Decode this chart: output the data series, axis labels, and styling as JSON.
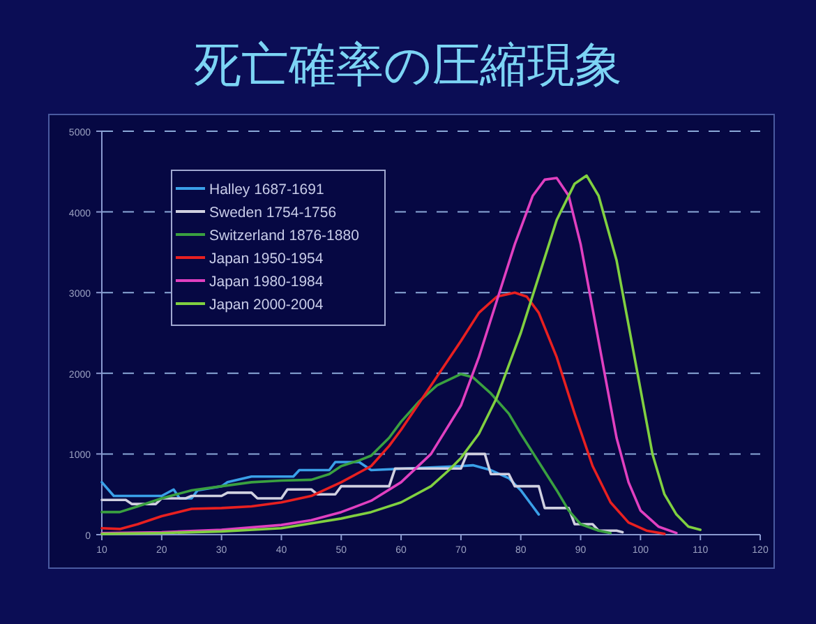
{
  "chart_data": {
    "type": "line",
    "title": "死亡確率の圧縮現象",
    "xlim": [
      10,
      120
    ],
    "ylim": [
      0,
      5000
    ],
    "xticks": [
      10,
      20,
      30,
      40,
      50,
      60,
      70,
      80,
      90,
      100,
      110,
      120
    ],
    "yticks": [
      0,
      1000,
      2000,
      3000,
      4000,
      5000
    ],
    "grid": "y",
    "legend": "top left",
    "line_style": "solid",
    "marker": "none",
    "series": [
      {
        "name": "Halley 1687-1691",
        "color": "#3aa0e8",
        "x": [
          10,
          12,
          20,
          22,
          23,
          25,
          26,
          30,
          31,
          35,
          42,
          43,
          48,
          49,
          53,
          55,
          70,
          72,
          75,
          78,
          80,
          82,
          83
        ],
        "values": [
          650,
          480,
          480,
          560,
          450,
          450,
          550,
          600,
          650,
          720,
          720,
          800,
          800,
          900,
          900,
          800,
          850,
          860,
          800,
          700,
          550,
          350,
          250
        ]
      },
      {
        "name": "Sweden 1754-1756",
        "color": "#d0d0e0",
        "x": [
          10,
          14,
          15,
          19,
          20,
          24,
          25,
          30,
          31,
          35,
          36,
          40,
          41,
          45,
          46,
          49,
          50,
          58,
          59,
          70,
          71,
          74,
          75,
          78,
          79,
          83,
          84,
          88,
          89,
          92,
          93,
          96,
          97
        ],
        "values": [
          430,
          430,
          380,
          380,
          450,
          450,
          480,
          480,
          520,
          520,
          450,
          450,
          560,
          560,
          500,
          500,
          600,
          600,
          820,
          820,
          1000,
          1000,
          750,
          750,
          600,
          600,
          330,
          330,
          130,
          130,
          50,
          50,
          30
        ]
      },
      {
        "name": "Switzerland 1876-1880",
        "color": "#3aa040",
        "x": [
          10,
          13,
          16,
          20,
          25,
          30,
          35,
          40,
          45,
          48,
          50,
          53,
          55,
          58,
          60,
          63,
          66,
          70,
          72,
          75,
          78,
          80,
          83,
          86,
          88,
          90,
          93,
          95
        ],
        "values": [
          280,
          280,
          350,
          450,
          550,
          600,
          650,
          670,
          680,
          750,
          850,
          920,
          980,
          1200,
          1400,
          1650,
          1850,
          1990,
          1950,
          1750,
          1500,
          1250,
          900,
          550,
          300,
          130,
          50,
          20
        ]
      },
      {
        "name": "Japan 1950-1954",
        "color": "#e82020",
        "x": [
          10,
          13,
          16,
          20,
          25,
          30,
          35,
          40,
          45,
          50,
          55,
          58,
          60,
          65,
          70,
          73,
          76,
          79,
          81,
          83,
          86,
          89,
          92,
          95,
          98,
          101,
          104
        ],
        "values": [
          80,
          70,
          130,
          230,
          320,
          330,
          350,
          400,
          480,
          650,
          850,
          1100,
          1300,
          1850,
          2400,
          2750,
          2950,
          3000,
          2950,
          2750,
          2200,
          1500,
          850,
          400,
          150,
          50,
          10
        ]
      },
      {
        "name": "Japan 1980-1984",
        "color": "#e040c0",
        "x": [
          10,
          20,
          30,
          40,
          45,
          50,
          55,
          60,
          65,
          70,
          73,
          76,
          79,
          82,
          84,
          86,
          88,
          90,
          92,
          94,
          96,
          98,
          100,
          103,
          106
        ],
        "values": [
          20,
          30,
          60,
          120,
          180,
          280,
          420,
          650,
          1000,
          1600,
          2200,
          2900,
          3600,
          4200,
          4400,
          4420,
          4200,
          3600,
          2800,
          2000,
          1200,
          650,
          300,
          100,
          20
        ]
      },
      {
        "name": "Japan 2000-2004",
        "color": "#80d040",
        "x": [
          10,
          20,
          30,
          40,
          50,
          55,
          60,
          65,
          68,
          70,
          73,
          76,
          80,
          83,
          86,
          89,
          91,
          93,
          96,
          98,
          100,
          102,
          104,
          106,
          108,
          110
        ],
        "values": [
          10,
          20,
          40,
          80,
          200,
          280,
          400,
          600,
          800,
          950,
          1250,
          1700,
          2500,
          3200,
          3900,
          4350,
          4450,
          4200,
          3400,
          2600,
          1800,
          1000,
          500,
          250,
          100,
          60
        ]
      }
    ]
  }
}
